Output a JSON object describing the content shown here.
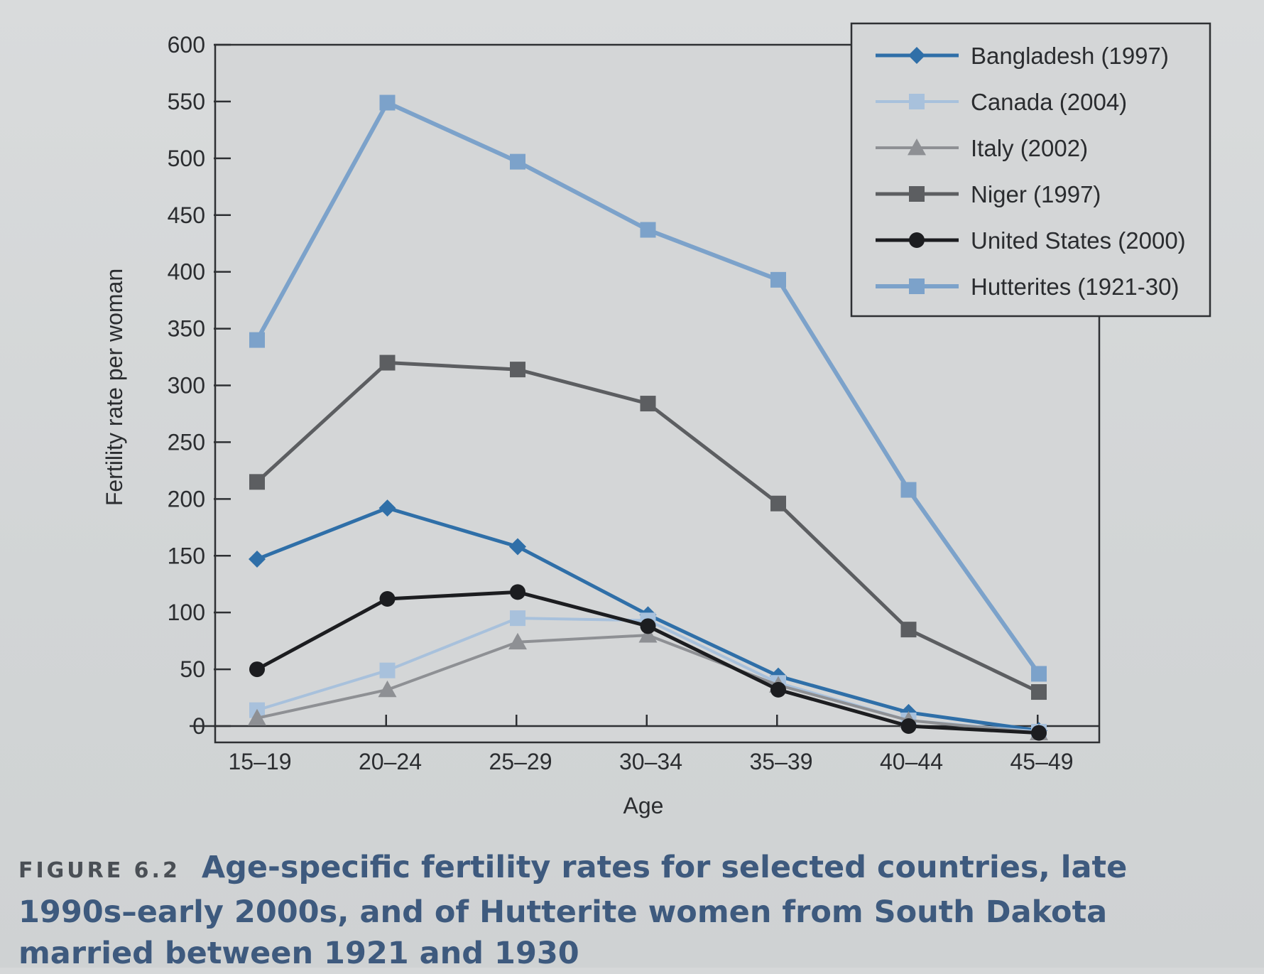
{
  "chart_data": {
    "type": "line",
    "categories": [
      "15–19",
      "20–24",
      "25–29",
      "30–34",
      "35–39",
      "40–44",
      "45–49"
    ],
    "xlabel": "Age",
    "ylabel": "Fertility rate per woman",
    "ylim": [
      0,
      600
    ],
    "yticks": [
      "0",
      "50",
      "100",
      "150",
      "200",
      "250",
      "300",
      "350",
      "400",
      "450",
      "500",
      "550",
      "600"
    ],
    "legend_position": "top-right",
    "grid": false,
    "series": [
      {
        "name": "Bangladesh (1997)",
        "marker": "diamond",
        "color": "#2f6fa8",
        "width": 5,
        "values": [
          147,
          192,
          158,
          98,
          44,
          12,
          -4
        ]
      },
      {
        "name": "Canada (2004)",
        "marker": "square",
        "color": "#a8c1dc",
        "width": 4,
        "values": [
          14,
          49,
          95,
          93,
          38,
          5,
          -5
        ]
      },
      {
        "name": "Italy (2002)",
        "marker": "triangle",
        "color": "#8e9094",
        "width": 4,
        "values": [
          7,
          32,
          74,
          80,
          36,
          5,
          -6
        ]
      },
      {
        "name": "Niger (1997)",
        "marker": "square",
        "color": "#5c5e61",
        "width": 5,
        "values": [
          215,
          320,
          314,
          284,
          196,
          85,
          30
        ]
      },
      {
        "name": "United States (2000)",
        "marker": "circle",
        "color": "#1c1d20",
        "width": 5,
        "values": [
          50,
          112,
          118,
          88,
          32,
          0,
          -6
        ]
      },
      {
        "name": "Hutterites (1921-30)",
        "marker": "square",
        "color": "#7ca2ca",
        "width": 6,
        "values": [
          340,
          549,
          497,
          437,
          393,
          208,
          46
        ]
      }
    ]
  },
  "caption": {
    "label": "FIGURE 6.2",
    "text": "Age-specific fertility rates for selected countries, late 1990s–early 2000s, and of Hutterite women from South Dakota married between 1921 and 1930"
  }
}
